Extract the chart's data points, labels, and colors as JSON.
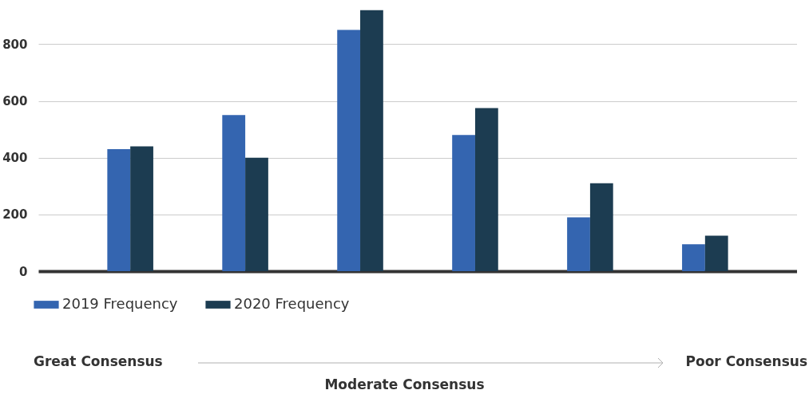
{
  "chart_data": {
    "type": "bar",
    "categories": [
      null,
      null,
      null,
      null,
      null,
      null
    ],
    "series": [
      {
        "name": "2019 Frequency",
        "color": "#3465b0",
        "values": [
          430,
          550,
          850,
          480,
          190,
          95
        ]
      },
      {
        "name": "2020 Frequency",
        "color": "#1c3c51",
        "values": [
          440,
          400,
          920,
          575,
          310,
          125
        ]
      }
    ],
    "ylim": [
      0,
      950
    ],
    "yticks": [
      0,
      200,
      400,
      600,
      800
    ],
    "grid": "y",
    "legend": "bottom",
    "tick_labels": "y",
    "annotations": [
      "Great Consensus",
      "Moderate Consensus",
      "Poor Consensus"
    ]
  }
}
